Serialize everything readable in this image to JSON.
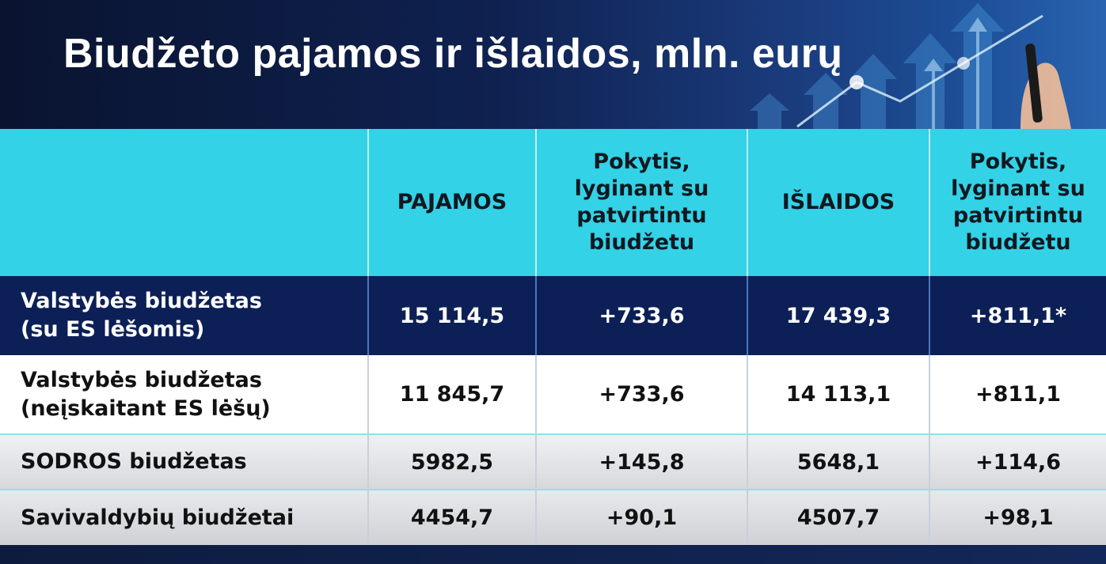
{
  "title": "Biudžeto pajamos ir išlaidos, mln. eurų",
  "table": {
    "headers": [
      "",
      "PAJAMOS",
      "Pokytis, lyginant su patvirtintu biudžetu",
      "IŠLAIDOS",
      "Pokytis, lyginant su patvirtintu biudžetu"
    ],
    "rows": [
      {
        "label_line1": "Valstybės biudžetas",
        "label_line2": "(su ES lėšomis)",
        "pajamos": "15 114,5",
        "pajamos_pokytis": "+733,6",
        "islaidos": "17 439,3",
        "islaidos_pokytis": "+811,1*"
      },
      {
        "label_line1": "Valstybės biudžetas",
        "label_line2": "(neįskaitant ES lėšų)",
        "pajamos": "11 845,7",
        "pajamos_pokytis": "+733,6",
        "islaidos": "14 113,1",
        "islaidos_pokytis": "+811,1"
      },
      {
        "label_line1": "SODROS biudžetas",
        "label_line2": "",
        "pajamos": "5982,5",
        "pajamos_pokytis": "+145,8",
        "islaidos": "5648,1",
        "islaidos_pokytis": "+114,6"
      },
      {
        "label_line1": "Savivaldybių biudžetai",
        "label_line2": "",
        "pajamos": "4454,7",
        "pajamos_pokytis": "+90,1",
        "islaidos": "4507,7",
        "islaidos_pokytis": "+98,1"
      }
    ]
  },
  "colors": {
    "header_bg": "#33d2e6",
    "dark_row_bg": "#0c2057",
    "banner_bg": "#0f2150"
  },
  "decoration": "growth-chart-arrows-with-hand-holding-pen"
}
